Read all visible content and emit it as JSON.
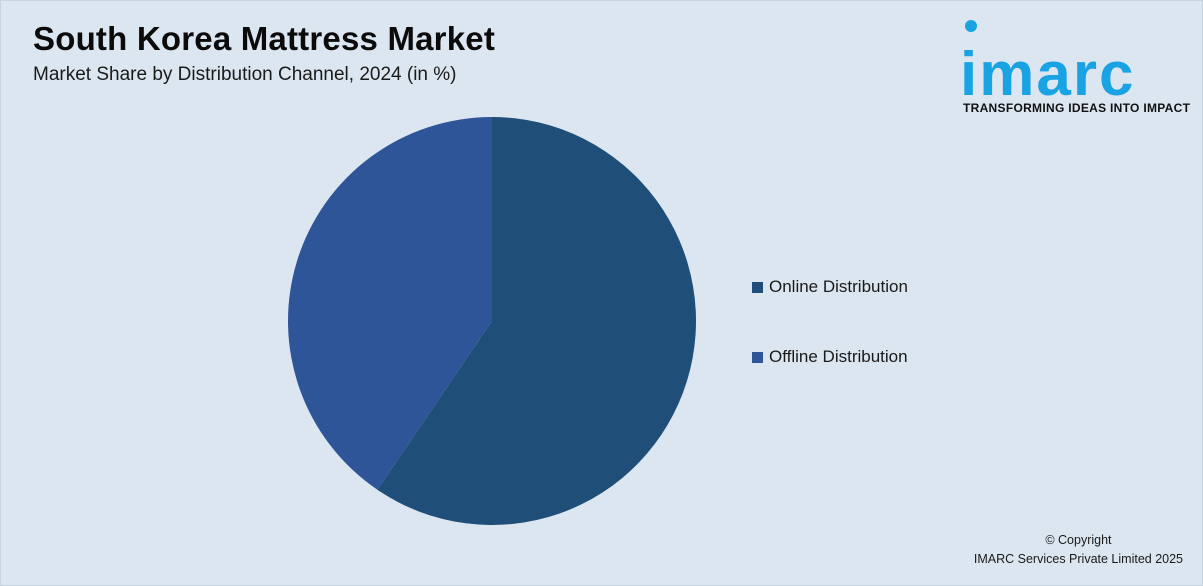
{
  "header": {
    "title": "South Korea Mattress Market",
    "subtitle": "Market Share by Distribution Channel, 2024 (in %)"
  },
  "logo": {
    "word": "imarc",
    "tagline": "TRANSFORMING IDEAS INTO IMPACT",
    "color": "#1aa3e3"
  },
  "chart_data": {
    "type": "pie",
    "title": "South Korea Mattress Market",
    "subtitle": "Market Share by Distribution Channel, 2024 (in %)",
    "legend_position": "right",
    "slices": [
      {
        "label": "Online Distribution",
        "value": 59.5,
        "color": "#1f4e79"
      },
      {
        "label": "Offline Distribution",
        "value": 40.5,
        "color": "#2e5597"
      }
    ]
  },
  "footer": {
    "copyright_line1": "© Copyright",
    "copyright_line2": "IMARC Services Private Limited 2025"
  }
}
